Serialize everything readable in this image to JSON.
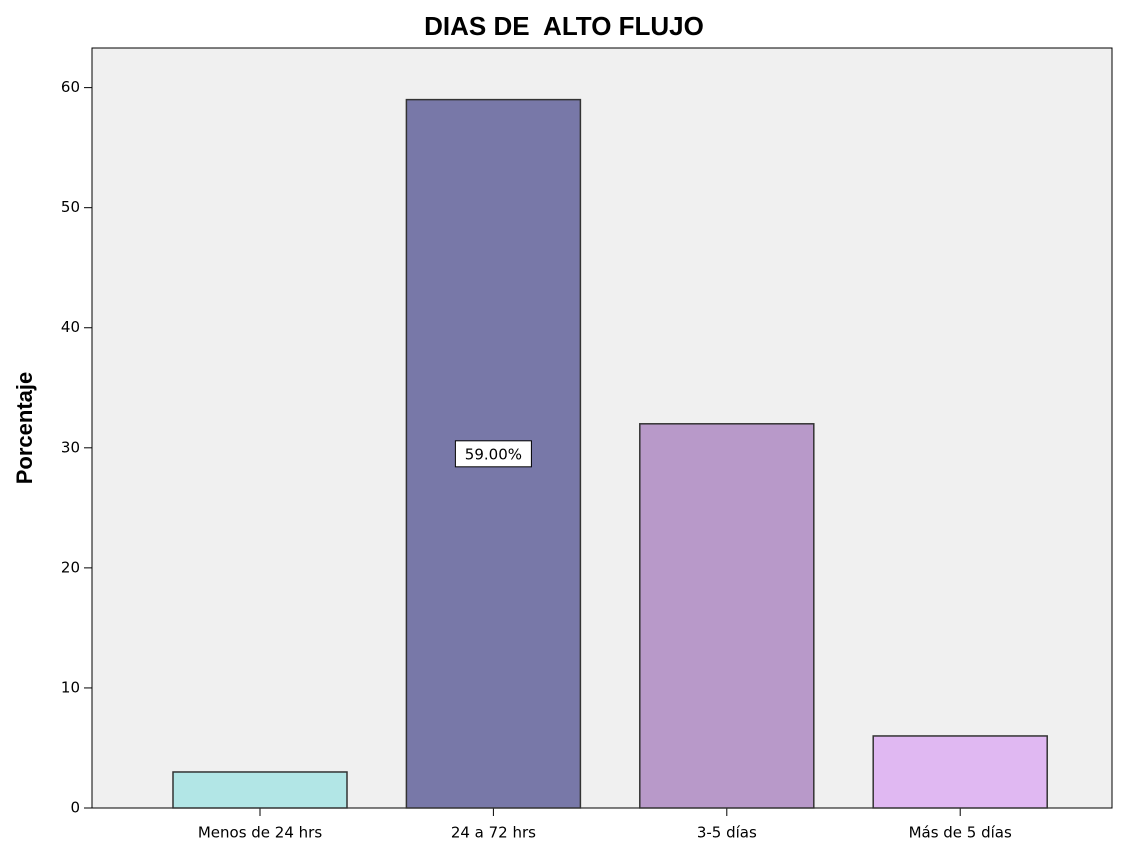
{
  "chart_data": {
    "type": "bar",
    "title": "DIAS DE  ALTO FLUJO",
    "ylabel": "Porcentaje",
    "categories": [
      "Menos de 24 hrs",
      "24 a 72 hrs",
      "3-5 días",
      "Más de 5 días"
    ],
    "values": [
      3,
      59,
      32,
      6
    ],
    "value_labels": [
      null,
      "59.00%",
      null,
      null
    ],
    "colors": [
      "#b2e6e6",
      "#7878a8",
      "#b899c9",
      "#e0b8f2"
    ],
    "ylim": [
      0,
      63.3
    ],
    "yticks": [
      0,
      10,
      20,
      30,
      40,
      50,
      60
    ],
    "grid": false
  }
}
